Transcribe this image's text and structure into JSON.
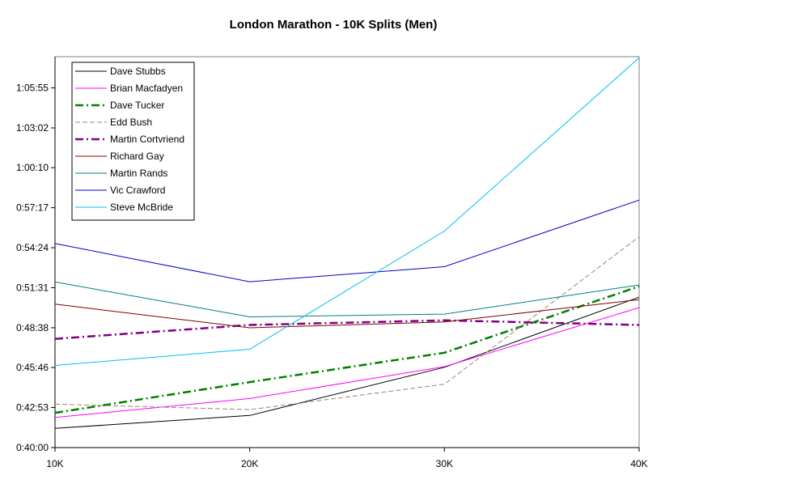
{
  "chart_data": {
    "type": "line",
    "title": "London Marathon - 10K Splits (Men)",
    "xlabel": "",
    "ylabel": "",
    "categories": [
      "10K",
      "20K",
      "30K",
      "40K"
    ],
    "y_ticks": [
      "0:40:00",
      "0:42:53",
      "0:45:46",
      "0:48:38",
      "0:51:31",
      "0:54:24",
      "0:57:17",
      "1:00:10",
      "1:03:02",
      "1:05:55"
    ],
    "y_tick_seconds": [
      2400,
      2573,
      2746,
      2918,
      3091,
      3264,
      3437,
      3610,
      3782,
      3955
    ],
    "ylim_seconds": [
      2400,
      4090
    ],
    "grid": false,
    "legend_position": "top-left",
    "series": [
      {
        "name": "Dave Stubbs",
        "color": "#000000",
        "dash": "",
        "width": 1,
        "values": [
          2483,
          2539,
          2747,
          3050
        ]
      },
      {
        "name": "Brian Macfadyen",
        "color": "#ff00ff",
        "dash": "",
        "width": 1,
        "values": [
          2530,
          2612,
          2750,
          3005
        ]
      },
      {
        "name": "Dave Tucker",
        "color": "#007f00",
        "dash": "10,4,2,4",
        "width": 2.5,
        "values": [
          2550,
          2683,
          2810,
          3097
        ]
      },
      {
        "name": "Edd Bush",
        "color": "#a0846a",
        "dash": "6,3",
        "width": 1,
        "values": [
          2588,
          2564,
          2674,
          3311
        ]
      },
      {
        "name": "Martin Cortvriend",
        "color": "#7f007f",
        "dash": "10,4,2,4",
        "width": 2.5,
        "values": [
          2870,
          2930,
          2950,
          2930
        ]
      },
      {
        "name": "Richard Gay",
        "color": "#7f0000",
        "dash": "",
        "width": 1,
        "values": [
          3020,
          2918,
          2943,
          3040
        ]
      },
      {
        "name": "Martin Rands",
        "color": "#007f7f",
        "dash": "",
        "width": 1,
        "values": [
          3116,
          2965,
          2977,
          3103
        ]
      },
      {
        "name": "Vic Crawford",
        "color": "#0000cc",
        "dash": "",
        "width": 1,
        "values": [
          3282,
          3117,
          3182,
          3470
        ]
      },
      {
        "name": "Steve McBride",
        "color": "#00bfef",
        "dash": "",
        "width": 1,
        "values": [
          2755,
          2825,
          3336,
          4085
        ]
      }
    ]
  }
}
